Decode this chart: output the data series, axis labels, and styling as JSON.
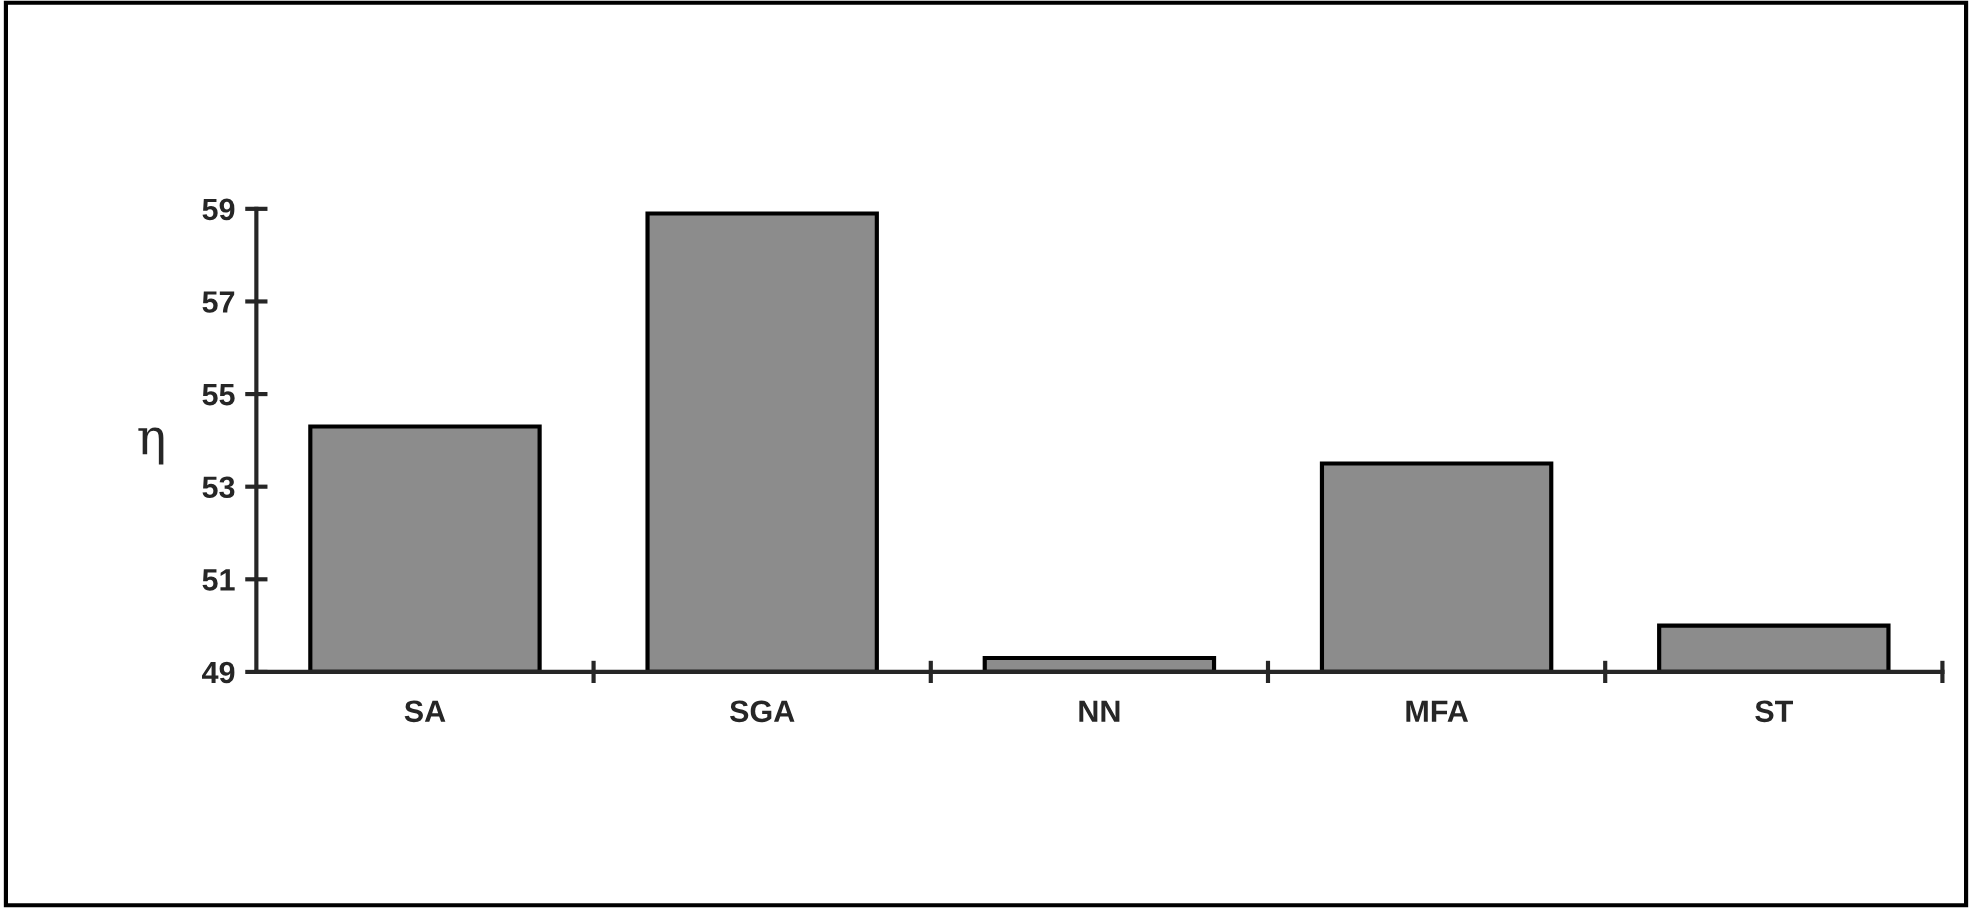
{
  "chart_data": {
    "type": "bar",
    "ylabel": "η",
    "categories": [
      "SA",
      "SGA",
      "NN",
      "MFA",
      "ST"
    ],
    "values": [
      54.3,
      58.9,
      49.3,
      53.5,
      50.0
    ],
    "color": "#8c8c8c",
    "ylim": [
      49,
      59
    ],
    "yticks": [
      49,
      51,
      53,
      55,
      57,
      59
    ],
    "grid": false
  }
}
